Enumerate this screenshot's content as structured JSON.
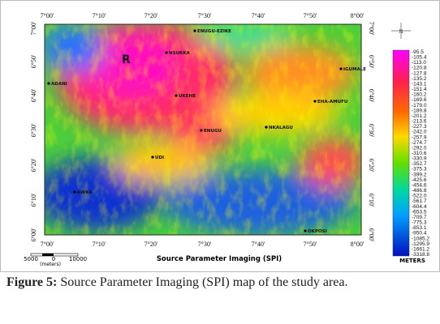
{
  "figure": {
    "top_ticks": [
      "7°00'",
      "7°10'",
      "7°20'",
      "7°30'",
      "7°40'",
      "7°50'",
      "8°00'"
    ],
    "left_ticks": [
      "7°00'",
      "6°50'",
      "6°40'",
      "6°30'",
      "6°20'",
      "6°10'",
      "6°00'"
    ],
    "places": [
      {
        "label": "ENUGU-EZIKE"
      },
      {
        "label": "NSUKKA"
      },
      {
        "label": "IGUMALE"
      },
      {
        "label": "ADANI"
      },
      {
        "label": "UKEHE"
      },
      {
        "label": "EHA-AMUFU"
      },
      {
        "label": "ENUGU"
      },
      {
        "label": "NKALAGU"
      },
      {
        "label": "UDI"
      },
      {
        "label": "AWKA"
      },
      {
        "label": "OKPOSI"
      }
    ],
    "region_label": "R",
    "scale_bar": {
      "left": "5000",
      "mid": "0",
      "right": "10000",
      "unit": "(meters)"
    },
    "subtitle": "Source Parameter Imaging (SPI)",
    "colorbar": {
      "unit": "METERS",
      "labels": [
        "-95.5",
        "-105.4",
        "-113.0",
        "-120.8",
        "-127.8",
        "-135.2",
        "-143.1",
        "-151.4",
        "-160.2",
        "-169.6",
        "-179.0",
        "-189.8",
        "-201.2",
        "-213.6",
        "-227.3",
        "-242.0",
        "-257.9",
        "-274.7",
        "-292.0",
        "-310.6",
        "-330.9",
        "-352.7",
        "-375.3",
        "-399.2",
        "-425.6",
        "-454.6",
        "-486.8",
        "-522.0",
        "-561.7",
        "-604.4",
        "-653.5",
        "-709.7",
        "-775.3",
        "-853.1",
        "-950.4",
        "-1085.2",
        "-1295.9",
        "-1661.2",
        "-3318.8"
      ]
    },
    "north": "N"
  },
  "caption": {
    "label": "Figure 5:",
    "text": "Source Parameter Imaging (SPI) map of the study area."
  }
}
